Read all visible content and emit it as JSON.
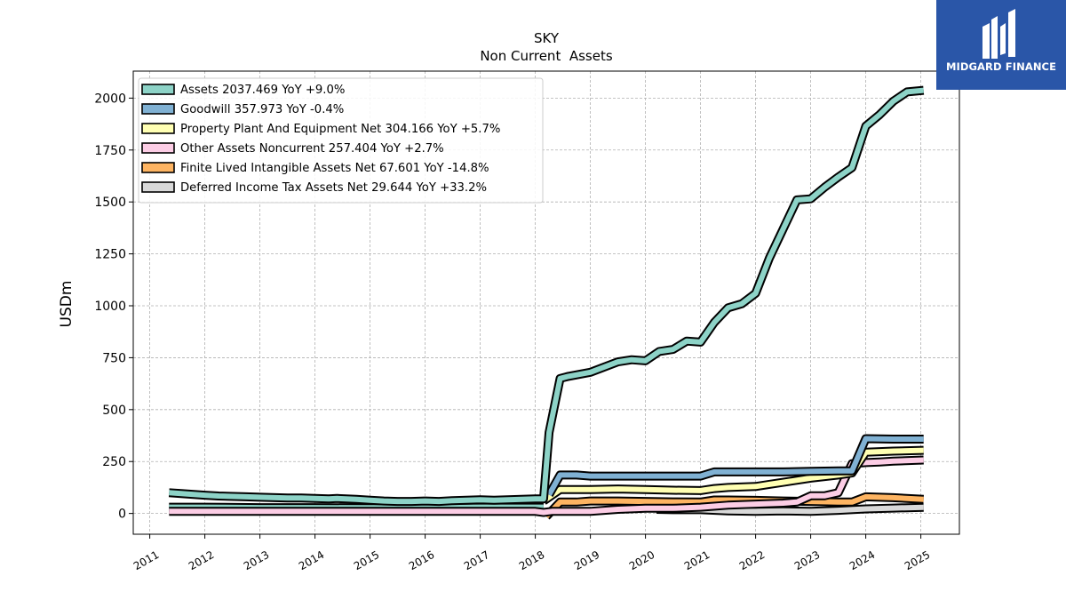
{
  "brand": {
    "name": "MIDGARD FINANCE",
    "color": "#2a56a8"
  },
  "chart_data": {
    "type": "line",
    "title": "SKY",
    "subtitle": "Non Current  Assets",
    "ylabel": "USDm",
    "xlabel": "",
    "xlim": [
      2010.7,
      2025.7
    ],
    "ylim": [
      -100,
      2130
    ],
    "yticks": [
      0,
      250,
      500,
      750,
      1000,
      1250,
      1500,
      1750,
      2000
    ],
    "xticks": [
      "2011",
      "2012",
      "2013",
      "2014",
      "2015",
      "2016",
      "2017",
      "2018",
      "2019",
      "2020",
      "2021",
      "2022",
      "2023",
      "2024",
      "2025"
    ],
    "grid": true,
    "legend_position": "upper-left",
    "series": [
      {
        "name": "Assets  2037.469 YoY +9.0%",
        "color": "#8dd3c7",
        "points": [
          [
            2011.35,
            100
          ],
          [
            2011.6,
            95
          ],
          [
            2012.0,
            88
          ],
          [
            2012.25,
            84
          ],
          [
            2012.75,
            80
          ],
          [
            2013.0,
            78
          ],
          [
            2013.5,
            74
          ],
          [
            2013.75,
            74
          ],
          [
            2014.0,
            72
          ],
          [
            2014.25,
            70
          ],
          [
            2014.4,
            72
          ],
          [
            2014.75,
            68
          ],
          [
            2015.0,
            64
          ],
          [
            2015.25,
            60
          ],
          [
            2015.5,
            58
          ],
          [
            2015.75,
            58
          ],
          [
            2016.0,
            60
          ],
          [
            2016.25,
            58
          ],
          [
            2016.5,
            62
          ],
          [
            2016.75,
            64
          ],
          [
            2017.0,
            66
          ],
          [
            2017.25,
            64
          ],
          [
            2017.5,
            66
          ],
          [
            2017.75,
            68
          ],
          [
            2018.0,
            70
          ],
          [
            2018.15,
            70
          ],
          [
            2018.25,
            390
          ],
          [
            2018.45,
            650
          ],
          [
            2018.6,
            660
          ],
          [
            2019.0,
            680
          ],
          [
            2019.25,
            705
          ],
          [
            2019.5,
            730
          ],
          [
            2019.75,
            740
          ],
          [
            2020.0,
            735
          ],
          [
            2020.25,
            780
          ],
          [
            2020.5,
            790
          ],
          [
            2020.75,
            830
          ],
          [
            2021.0,
            825
          ],
          [
            2021.25,
            920
          ],
          [
            2021.5,
            990
          ],
          [
            2021.75,
            1010
          ],
          [
            2022.0,
            1060
          ],
          [
            2022.25,
            1230
          ],
          [
            2022.5,
            1370
          ],
          [
            2022.75,
            1510
          ],
          [
            2023.0,
            1515
          ],
          [
            2023.25,
            1570
          ],
          [
            2023.5,
            1620
          ],
          [
            2023.75,
            1665
          ],
          [
            2024.0,
            1865
          ],
          [
            2024.25,
            1920
          ],
          [
            2024.5,
            1985
          ],
          [
            2024.75,
            2030
          ],
          [
            2025.05,
            2037.469
          ]
        ]
      },
      {
        "name": "Goodwill  357.973 YoY -0.4%",
        "color": "#80b1d3",
        "points": [
          [
            2018.25,
            90
          ],
          [
            2018.45,
            185
          ],
          [
            2018.75,
            185
          ],
          [
            2019.0,
            180
          ],
          [
            2019.5,
            180
          ],
          [
            2020.0,
            180
          ],
          [
            2020.5,
            180
          ],
          [
            2021.0,
            180
          ],
          [
            2021.25,
            200
          ],
          [
            2021.5,
            200
          ],
          [
            2022.0,
            200
          ],
          [
            2022.5,
            200
          ],
          [
            2023.0,
            203
          ],
          [
            2023.5,
            205
          ],
          [
            2023.75,
            205
          ],
          [
            2024.0,
            360
          ],
          [
            2024.5,
            358
          ],
          [
            2025.05,
            357.973
          ]
        ]
      },
      {
        "name": "Property Plant And Equipment Net  304.166 YoY +5.7%",
        "color": "#ffffb3",
        "points": [
          [
            2018.15,
            60
          ],
          [
            2018.45,
            115
          ],
          [
            2018.75,
            115
          ],
          [
            2019.0,
            115
          ],
          [
            2019.5,
            118
          ],
          [
            2020.0,
            115
          ],
          [
            2020.5,
            112
          ],
          [
            2021.0,
            110
          ],
          [
            2021.25,
            120
          ],
          [
            2021.5,
            125
          ],
          [
            2022.0,
            130
          ],
          [
            2022.25,
            140
          ],
          [
            2022.5,
            150
          ],
          [
            2023.0,
            170
          ],
          [
            2023.5,
            185
          ],
          [
            2023.75,
            195
          ],
          [
            2024.0,
            295
          ],
          [
            2024.5,
            300
          ],
          [
            2025.05,
            304.166
          ]
        ]
      },
      {
        "name": "Other Assets Noncurrent  257.404 YoY +2.7%",
        "color": "#fccde5",
        "points": [
          [
            2011.35,
            10
          ],
          [
            2012.0,
            10
          ],
          [
            2013.0,
            10
          ],
          [
            2014.0,
            10
          ],
          [
            2015.0,
            10
          ],
          [
            2016.0,
            10
          ],
          [
            2017.0,
            10
          ],
          [
            2018.0,
            10
          ],
          [
            2018.15,
            5
          ],
          [
            2018.3,
            10
          ],
          [
            2018.75,
            10
          ],
          [
            2019.0,
            10
          ],
          [
            2019.25,
            15
          ],
          [
            2019.5,
            20
          ],
          [
            2020.0,
            25
          ],
          [
            2020.5,
            25
          ],
          [
            2021.0,
            30
          ],
          [
            2021.5,
            40
          ],
          [
            2022.0,
            45
          ],
          [
            2022.5,
            50
          ],
          [
            2022.75,
            55
          ],
          [
            2023.0,
            85
          ],
          [
            2023.25,
            85
          ],
          [
            2023.5,
            100
          ],
          [
            2023.75,
            240
          ],
          [
            2024.0,
            245
          ],
          [
            2024.25,
            248
          ],
          [
            2024.5,
            252
          ],
          [
            2025.05,
            257.404
          ]
        ]
      },
      {
        "name": "Finite Lived Intangible Assets Net  67.601 YoY -14.8%",
        "color": "#fdb462",
        "points": [
          [
            2018.2,
            -15
          ],
          [
            2018.45,
            55
          ],
          [
            2018.75,
            55
          ],
          [
            2019.0,
            60
          ],
          [
            2019.5,
            60
          ],
          [
            2020.0,
            58
          ],
          [
            2020.5,
            56
          ],
          [
            2021.0,
            55
          ],
          [
            2021.25,
            65
          ],
          [
            2021.5,
            65
          ],
          [
            2022.0,
            63
          ],
          [
            2022.5,
            60
          ],
          [
            2023.0,
            58
          ],
          [
            2023.5,
            55
          ],
          [
            2023.75,
            55
          ],
          [
            2024.0,
            80
          ],
          [
            2024.5,
            76
          ],
          [
            2025.05,
            67.601
          ]
        ]
      },
      {
        "name": "Deferred Income Tax Assets Net  29.644 YoY +33.2%",
        "color": "#d9d9d9",
        "points": [
          [
            2020.2,
            20
          ],
          [
            2020.5,
            18
          ],
          [
            2021.0,
            18
          ],
          [
            2021.5,
            12
          ],
          [
            2022.0,
            10
          ],
          [
            2022.5,
            12
          ],
          [
            2023.0,
            10
          ],
          [
            2023.5,
            15
          ],
          [
            2024.0,
            22
          ],
          [
            2024.5,
            26
          ],
          [
            2025.05,
            29.644
          ]
        ]
      },
      {
        "name": "",
        "color": "#8dd3c7",
        "points": [
          [
            2011.35,
            30
          ],
          [
            2012.0,
            30
          ],
          [
            2013.0,
            28
          ],
          [
            2014.0,
            28
          ],
          [
            2015.0,
            27
          ],
          [
            2016.0,
            28
          ],
          [
            2017.0,
            30
          ],
          [
            2018.0,
            30
          ],
          [
            2018.15,
            30
          ]
        ]
      }
    ]
  }
}
